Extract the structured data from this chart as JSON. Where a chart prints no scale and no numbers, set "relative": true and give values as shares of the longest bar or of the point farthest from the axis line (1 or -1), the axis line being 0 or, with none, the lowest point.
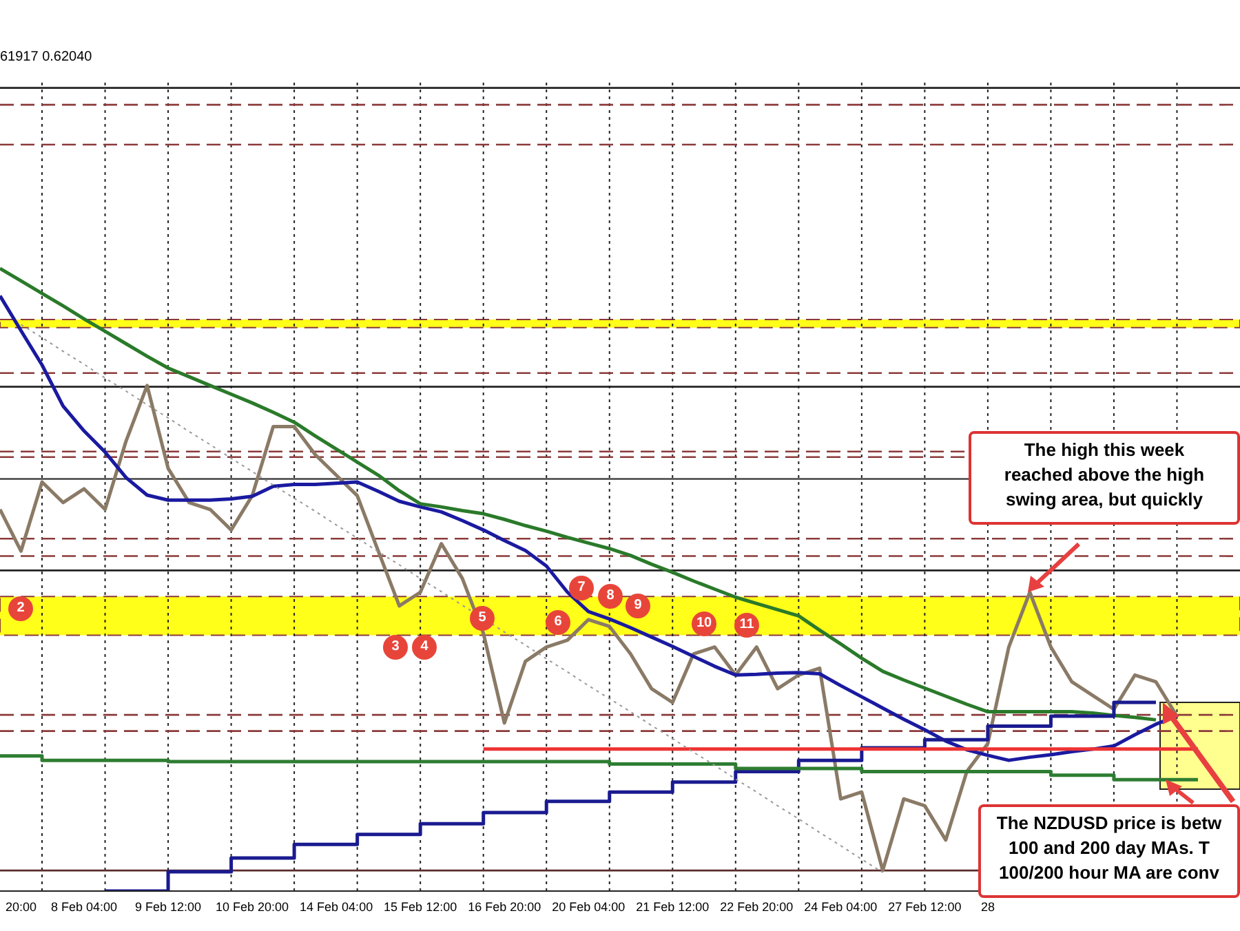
{
  "chart_data": {
    "type": "line",
    "relative": true,
    "categories": [
      null,
      "20:00",
      null,
      null,
      "8 Feb 04:00",
      null,
      null,
      null,
      "9 Feb 12:00",
      null,
      null,
      null,
      "10 Feb 20:00",
      null,
      null,
      null,
      "14 Feb 04:00",
      null,
      null,
      null,
      "15 Feb 12:00",
      null,
      null,
      null,
      "16 Feb 20:00",
      null,
      null,
      null,
      "20 Feb 04:00",
      null,
      null,
      null,
      "21 Feb 12:00",
      null,
      null,
      null,
      "22 Feb 20:00",
      null,
      null,
      null,
      "24 Feb 04:00",
      null,
      null,
      null,
      "27 Feb 12:00",
      null,
      null,
      "28",
      null,
      null,
      null,
      null,
      null,
      null,
      null,
      null,
      null,
      null
    ],
    "grid": "x",
    "legend": false,
    "series": [
      {
        "color": "#8a7a66",
        "values": [
          0.613,
          0.546,
          0.657,
          0.624,
          0.646,
          0.613,
          0.723,
          0.812,
          0.679,
          0.624,
          0.613,
          0.58,
          0.635,
          0.746,
          0.746,
          0.701,
          0.668,
          0.635,
          0.546,
          0.458,
          0.48,
          0.558,
          0.502,
          0.414,
          0.27,
          0.369,
          0.392,
          0.403,
          0.436,
          0.425,
          0.381,
          0.325,
          0.303,
          0.381,
          0.392,
          0.347,
          0.392,
          0.325,
          0.347,
          0.358,
          0.148,
          0.159,
          0.033,
          0.148,
          0.137,
          0.082,
          0.192,
          0.237,
          0.392,
          0.48,
          0.392,
          0.336,
          0.314,
          0.292,
          0.347,
          0.336,
          0.281,
          null
        ]
      },
      {
        "color": "#1a1aa0",
        "values": [
          0.956,
          0.9,
          0.845,
          0.779,
          0.739,
          0.705,
          0.664,
          0.636,
          0.628,
          0.628,
          0.628,
          0.63,
          0.634,
          0.65,
          0.653,
          0.653,
          0.655,
          0.657,
          0.642,
          0.626,
          0.617,
          0.609,
          0.595,
          0.58,
          0.563,
          0.547,
          0.522,
          0.48,
          0.449,
          0.437,
          0.423,
          0.408,
          0.393,
          0.377,
          0.361,
          0.347,
          0.348,
          0.35,
          0.351,
          0.349,
          0.33,
          0.312,
          0.294,
          0.276,
          0.259,
          0.241,
          0.227,
          0.218,
          0.21,
          0.215,
          0.219,
          0.224,
          0.228,
          0.233,
          0.251,
          0.268,
          0.281,
          null
        ]
      },
      {
        "color": "#2a7a2a",
        "values": [
          1,
          0.98,
          0.96,
          0.94,
          0.919,
          0.899,
          0.879,
          0.859,
          0.84,
          0.826,
          0.812,
          0.798,
          0.784,
          0.769,
          0.753,
          0.731,
          0.71,
          0.689,
          0.668,
          0.643,
          0.622,
          0.617,
          0.611,
          0.606,
          0.597,
          0.587,
          0.578,
          0.568,
          0.559,
          0.55,
          0.539,
          0.525,
          0.512,
          0.498,
          0.485,
          0.472,
          0.462,
          0.452,
          0.442,
          0.419,
          0.397,
          0.374,
          0.353,
          0.339,
          0.326,
          0.313,
          0.3,
          0.288,
          0.288,
          0.288,
          0.288,
          0.288,
          0.286,
          0.282,
          0.279,
          0.275,
          null,
          null
        ]
      },
      {
        "type": "step",
        "color": "#1a1a90",
        "values": [
          null,
          null,
          null,
          null,
          null,
          0,
          0,
          0,
          0.031,
          0.031,
          0.031,
          0.053,
          0.053,
          0.053,
          0.075,
          0.075,
          0.075,
          0.091,
          0.091,
          0.091,
          0.108,
          0.108,
          0.108,
          0.126,
          0.126,
          0.126,
          0.144,
          0.144,
          0.144,
          0.159,
          0.159,
          0.159,
          0.175,
          0.175,
          0.175,
          0.192,
          0.192,
          0.192,
          0.21,
          0.21,
          0.21,
          0.23,
          0.23,
          0.23,
          0.243,
          0.243,
          0.243,
          0.265,
          0.265,
          0.265,
          0.281,
          0.281,
          0.281,
          0.303,
          0.303,
          0.303,
          null,
          null
        ]
      },
      {
        "type": "step",
        "color": "#2e7d32",
        "values": [
          0.217,
          0.217,
          0.21,
          0.21,
          0.21,
          0.21,
          0.21,
          0.21,
          0.208,
          0.208,
          0.208,
          0.208,
          0.208,
          0.208,
          0.208,
          0.208,
          0.208,
          0.208,
          0.208,
          0.208,
          0.208,
          0.208,
          0.208,
          0.208,
          0.208,
          0.208,
          0.208,
          0.208,
          0.208,
          0.204,
          0.204,
          0.204,
          0.204,
          0.204,
          0.204,
          0.197,
          0.197,
          0.197,
          0.197,
          0.197,
          0.197,
          0.192,
          0.192,
          0.192,
          0.192,
          0.192,
          0.192,
          0.192,
          0.192,
          0.192,
          0.186,
          0.186,
          0.186,
          0.179,
          0.179,
          0.179,
          0.179,
          0.179
        ]
      },
      {
        "color": "#ee3333",
        "values": [
          null,
          null,
          null,
          null,
          null,
          null,
          null,
          null,
          null,
          null,
          null,
          null,
          null,
          null,
          null,
          null,
          null,
          null,
          null,
          null,
          null,
          null,
          null,
          0.228,
          0.228,
          0.228,
          0.228,
          0.228,
          0.228,
          0.228,
          0.228,
          0.228,
          0.228,
          0.228,
          0.228,
          0.228,
          0.228,
          0.228,
          0.228,
          0.228,
          0.228,
          0.228,
          0.228,
          0.228,
          0.228,
          0.228,
          0.228,
          0.228,
          0.228,
          0.228,
          0.228,
          0.228,
          0.228,
          0.228,
          0.228,
          0.228,
          0.228,
          0.228
        ]
      },
      {
        "color": "#999999",
        "line_style": "dotted",
        "values": [
          null,
          0.91,
          0.889,
          0.867,
          0.846,
          0.824,
          0.803,
          0.781,
          0.76,
          0.738,
          0.717,
          0.695,
          0.674,
          0.652,
          0.631,
          0.61,
          0.588,
          0.567,
          0.545,
          0.524,
          0.502,
          0.481,
          0.459,
          0.438,
          0.416,
          0.395,
          0.373,
          0.352,
          0.33,
          0.309,
          0.288,
          0.266,
          0.245,
          0.223,
          0.202,
          0.18,
          0.159,
          0.137,
          0.116,
          0.094,
          0.073,
          0.051,
          0.03,
          null,
          null,
          null,
          null,
          null,
          null,
          null,
          null,
          null,
          null,
          null,
          null,
          null,
          null,
          null
        ]
      }
    ],
    "ref_lines": [
      {
        "axis": "y",
        "value": 1.29,
        "color": "#222222",
        "line_style": "solid"
      },
      {
        "axis": "y",
        "value": 1.263,
        "color": "#8b3a3a",
        "line_style": "dashed"
      },
      {
        "axis": "y",
        "value": 1.199,
        "color": "#8b3a3a",
        "line_style": "dashed"
      },
      {
        "axis": "y",
        "value": 0.832,
        "color": "#8b3a3a",
        "line_style": "dashed"
      },
      {
        "axis": "y",
        "value": 0.81,
        "color": "#222222",
        "line_style": "solid"
      },
      {
        "axis": "y",
        "value": 0.706,
        "color": "#8b3a3a",
        "line_style": "dashed"
      },
      {
        "axis": "y",
        "value": 0.697,
        "color": "#8b3a3a",
        "line_style": "dashed"
      },
      {
        "axis": "y",
        "value": 0.662,
        "color": "#444444",
        "line_style": "solid"
      },
      {
        "axis": "y",
        "value": 0.566,
        "color": "#8b3a3a",
        "line_style": "dashed"
      },
      {
        "axis": "y",
        "value": 0.538,
        "color": "#8b3a3a",
        "line_style": "dashed"
      },
      {
        "axis": "y",
        "value": 0.515,
        "color": "#222222",
        "line_style": "solid"
      },
      {
        "axis": "y",
        "value": 0.283,
        "color": "#8b3a3a",
        "line_style": "dashed"
      },
      {
        "axis": "y",
        "value": 0.257,
        "color": "#8b3a3a",
        "line_style": "dashed"
      },
      {
        "axis": "y",
        "value": 0.033,
        "color": "#5a2a2a",
        "line_style": "solid"
      }
    ],
    "bands": [
      {
        "axis": "y",
        "from": 0.905,
        "to": 0.918,
        "color": "#ffff00"
      },
      {
        "axis": "y",
        "from": 0.411,
        "to": 0.473,
        "color": "#ffff00"
      }
    ],
    "annotations": [
      "61917 0.62040",
      "The high this week\nreached above the high\nswing area, but quickly",
      "The NZDUSD price is betw\n100 and 200 day MAs. T\n100/200 hour MA are conv",
      "2",
      "3",
      "4",
      "5",
      "6",
      "7",
      "8",
      "9",
      "10",
      "11"
    ]
  }
}
